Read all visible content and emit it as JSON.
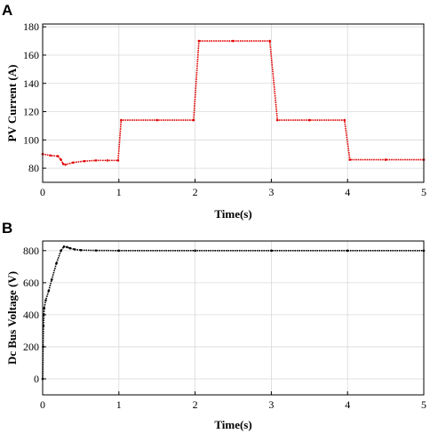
{
  "chart_data": [
    {
      "panel": "A",
      "type": "line",
      "xlabel": "Time(s)",
      "ylabel": "PV Current (A)",
      "xlim": [
        0,
        5
      ],
      "ylim": [
        70,
        182
      ],
      "xticks": [
        0,
        1,
        2,
        3,
        4,
        5
      ],
      "yticks": [
        80,
        100,
        120,
        140,
        160,
        180
      ],
      "grid": true,
      "series": [
        {
          "color": "#e00000",
          "marker": "dot",
          "x": [
            0,
            0.1,
            0.2,
            0.24,
            0.27,
            0.3,
            0.4,
            0.55,
            0.7,
            0.85,
            0.99,
            1.03,
            1.5,
            1.98,
            2.05,
            2.5,
            2.98,
            3.08,
            3.5,
            3.96,
            4.03,
            4.5,
            5.0
          ],
          "y": [
            90,
            89,
            88.5,
            86,
            83,
            82.5,
            84,
            85,
            85.5,
            85.5,
            85.5,
            114,
            114,
            114,
            170,
            170,
            170,
            114,
            114,
            114,
            86,
            86,
            86
          ]
        }
      ]
    },
    {
      "panel": "B",
      "type": "line",
      "xlabel": "Time(s)",
      "ylabel": "Dc Bus Voltage (V)",
      "xlim": [
        0,
        5
      ],
      "ylim": [
        -100,
        860
      ],
      "xticks": [
        0,
        1,
        2,
        3,
        4,
        5
      ],
      "yticks": [
        0,
        200,
        400,
        600,
        800
      ],
      "grid": true,
      "series": [
        {
          "color": "#000000",
          "marker": "dot",
          "x": [
            0,
            0.005,
            0.01,
            0.02,
            0.04,
            0.08,
            0.12,
            0.18,
            0.24,
            0.28,
            0.32,
            0.36,
            0.42,
            0.5,
            0.7,
            1.0,
            2.0,
            3.0,
            4.0,
            5.0
          ],
          "y": [
            0,
            200,
            330,
            440,
            490,
            550,
            620,
            720,
            800,
            825,
            822,
            815,
            808,
            803,
            801,
            800,
            800,
            800,
            800,
            800
          ]
        }
      ]
    }
  ]
}
